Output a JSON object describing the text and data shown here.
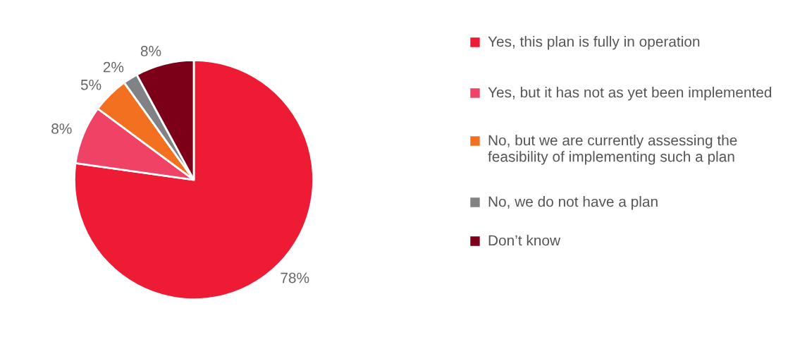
{
  "chart_data": {
    "type": "pie",
    "categories": [
      "Yes, this plan is fully in operation",
      "Yes, but it has not as yet been implemented",
      "No, but we are currently assessing the feasibility of implementing such a plan",
      "No, we do not have a plan",
      "Don’t know"
    ],
    "values": [
      78,
      8,
      5,
      2,
      8
    ],
    "colors": [
      "#ed1b34",
      "#f04265",
      "#f37021",
      "#808285",
      "#7d0019"
    ],
    "value_labels": [
      "78%",
      "8%",
      "5%",
      "2%",
      "8%"
    ],
    "legend": "right"
  }
}
